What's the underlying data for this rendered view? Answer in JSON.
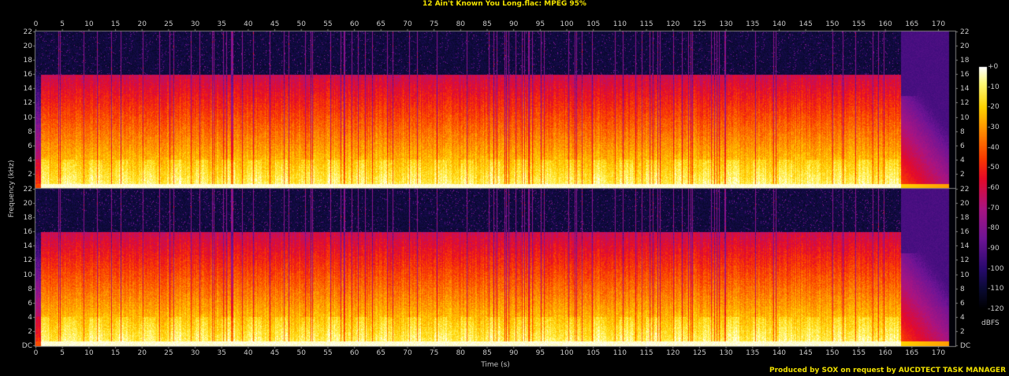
{
  "title": "12 Ain't Known You Long.flac: MPEG 95%",
  "footer": "Produced by SOX on request by AUCDTECT TASK MANAGER",
  "chart_data": {
    "type": "heatmap",
    "subtype": "spectrogram",
    "title": "12 Ain't Known You Long.flac: MPEG 95%",
    "xlabel": "Time (s)",
    "ylabel": "Frequency (kHz)",
    "xlim": [
      0,
      173
    ],
    "ylim": [
      0,
      22
    ],
    "channels": 2,
    "x_ticks": [
      "0",
      "5",
      "10",
      "15",
      "20",
      "25",
      "30",
      "35",
      "40",
      "45",
      "50",
      "55",
      "60",
      "65",
      "70",
      "75",
      "80",
      "85",
      "90",
      "95",
      "100",
      "105",
      "110",
      "115",
      "120",
      "125",
      "130",
      "135",
      "140",
      "145",
      "150",
      "155",
      "160",
      "165",
      "170"
    ],
    "y_ticks_top": [
      "22",
      "20",
      "18",
      "16",
      "14",
      "12",
      "10",
      "8",
      "6",
      "4",
      "2"
    ],
    "y_ticks_bottom": [
      "22",
      "20",
      "18",
      "16",
      "14",
      "12",
      "10",
      "8",
      "6",
      "4",
      "2",
      "DC"
    ],
    "colorbar": {
      "unit": "dBFS",
      "range": [
        -120,
        0
      ],
      "ticks": [
        "+0",
        "-10",
        "-20",
        "-30",
        "-40",
        "-50",
        "-60",
        "-70",
        "-80",
        "-90",
        "-100",
        "-110",
        "-120"
      ]
    },
    "spectral_cutoff_khz": 16,
    "music_end_s": 163,
    "track_end_s": 172,
    "grid": false
  },
  "colors": {
    "title": "#f0e000",
    "footer": "#f0e000",
    "axis": "#808080",
    "text": "#c8c8c8"
  }
}
